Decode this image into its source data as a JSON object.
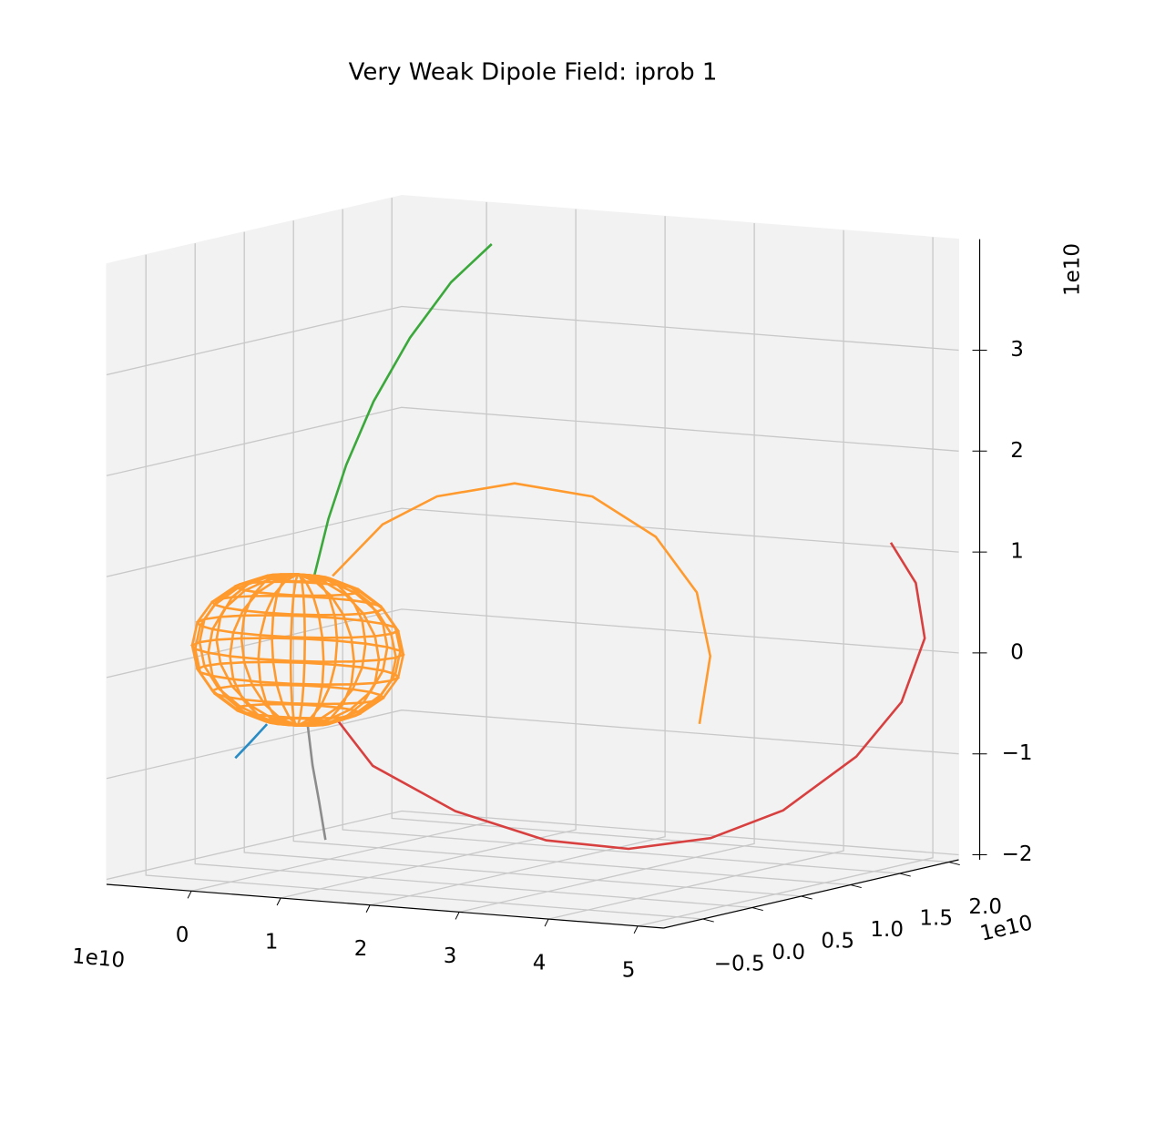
{
  "chart_data": {
    "type": "line3d",
    "title": "Very Weak Dipole Field: iprob 1",
    "xlim": [
      -0.95,
      5.29
    ],
    "ylim": [
      -0.9,
      2.1
    ],
    "zlim": [
      -2.05,
      4.1
    ],
    "xticks": [
      0,
      1,
      2,
      3,
      4,
      5
    ],
    "yticks": [
      {
        "value": -0.5,
        "label": "−0.5"
      },
      {
        "value": 0,
        "label": "0.0"
      },
      {
        "value": 0.5,
        "label": "0.5"
      },
      {
        "value": 1,
        "label": "1.0"
      },
      {
        "value": 1.5,
        "label": "1.5"
      },
      {
        "value": 2,
        "label": "2.0"
      }
    ],
    "zticks": [
      {
        "value": -2,
        "label": "−2"
      },
      {
        "value": -1,
        "label": "−1"
      },
      0,
      1,
      2,
      3
    ],
    "x_offset_label": "1e10",
    "y_offset_label": "1e10",
    "z_offset_label": "1e10",
    "grid": true,
    "series": [
      {
        "color": "#2a8cc4",
        "x": [
          -0.5,
          -0.33,
          -0.145
        ],
        "y": [
          0,
          0,
          0
        ],
        "z": [
          -0.97,
          -0.8,
          -0.61
        ]
      },
      {
        "color": "#8c8c8c",
        "x": [
          0.31,
          0.365,
          0.44,
          0.51
        ],
        "y": [
          0,
          0,
          0,
          0
        ],
        "z": [
          -0.58,
          -0.98,
          -1.34,
          -1.71
        ]
      },
      {
        "color": "#d84040",
        "x": [
          0.64,
          0.93,
          1.69,
          2.49,
          3.19,
          3.89,
          4.48,
          5.08,
          5.2,
          5.24,
          5.03,
          4.64
        ],
        "y": [
          0,
          0.1,
          0.25,
          0.45,
          0.65,
          0.85,
          1.05,
          1.25,
          1.6,
          1.8,
          1.9,
          2.0
        ],
        "z": [
          -0.51,
          -0.97,
          -1.4,
          -1.68,
          -1.76,
          -1.65,
          -1.38,
          -0.85,
          -0.38,
          0.21,
          0.72,
          1.07
        ]
      },
      {
        "color": "#ff9a2e",
        "x": [
          0.59,
          1.15,
          1.76,
          2.63,
          3.5,
          4.21,
          4.67,
          4.82,
          4.7
        ],
        "y": [
          0,
          0,
          0,
          0,
          0,
          0,
          0,
          0,
          0
        ],
        "z": [
          0.91,
          1.46,
          1.78,
          1.97,
          1.9,
          1.55,
          1.03,
          0.41,
          -0.27
        ]
      },
      {
        "color": "#3aa83a",
        "x": [
          0.386,
          0.359,
          0.376,
          0.498,
          0.722,
          0.998,
          1.27
        ],
        "y": [
          0,
          0.167,
          0.333,
          0.5,
          0.667,
          0.833,
          1
        ],
        "z": [
          0.9,
          1.42,
          1.92,
          2.52,
          3.13,
          3.66,
          4.02
        ]
      }
    ],
    "sphere": {
      "color": "#ff9a2e",
      "center": [
        0.2,
        0,
        0.15
      ],
      "radii": [
        1.1,
        0.4,
        0.75
      ]
    }
  }
}
